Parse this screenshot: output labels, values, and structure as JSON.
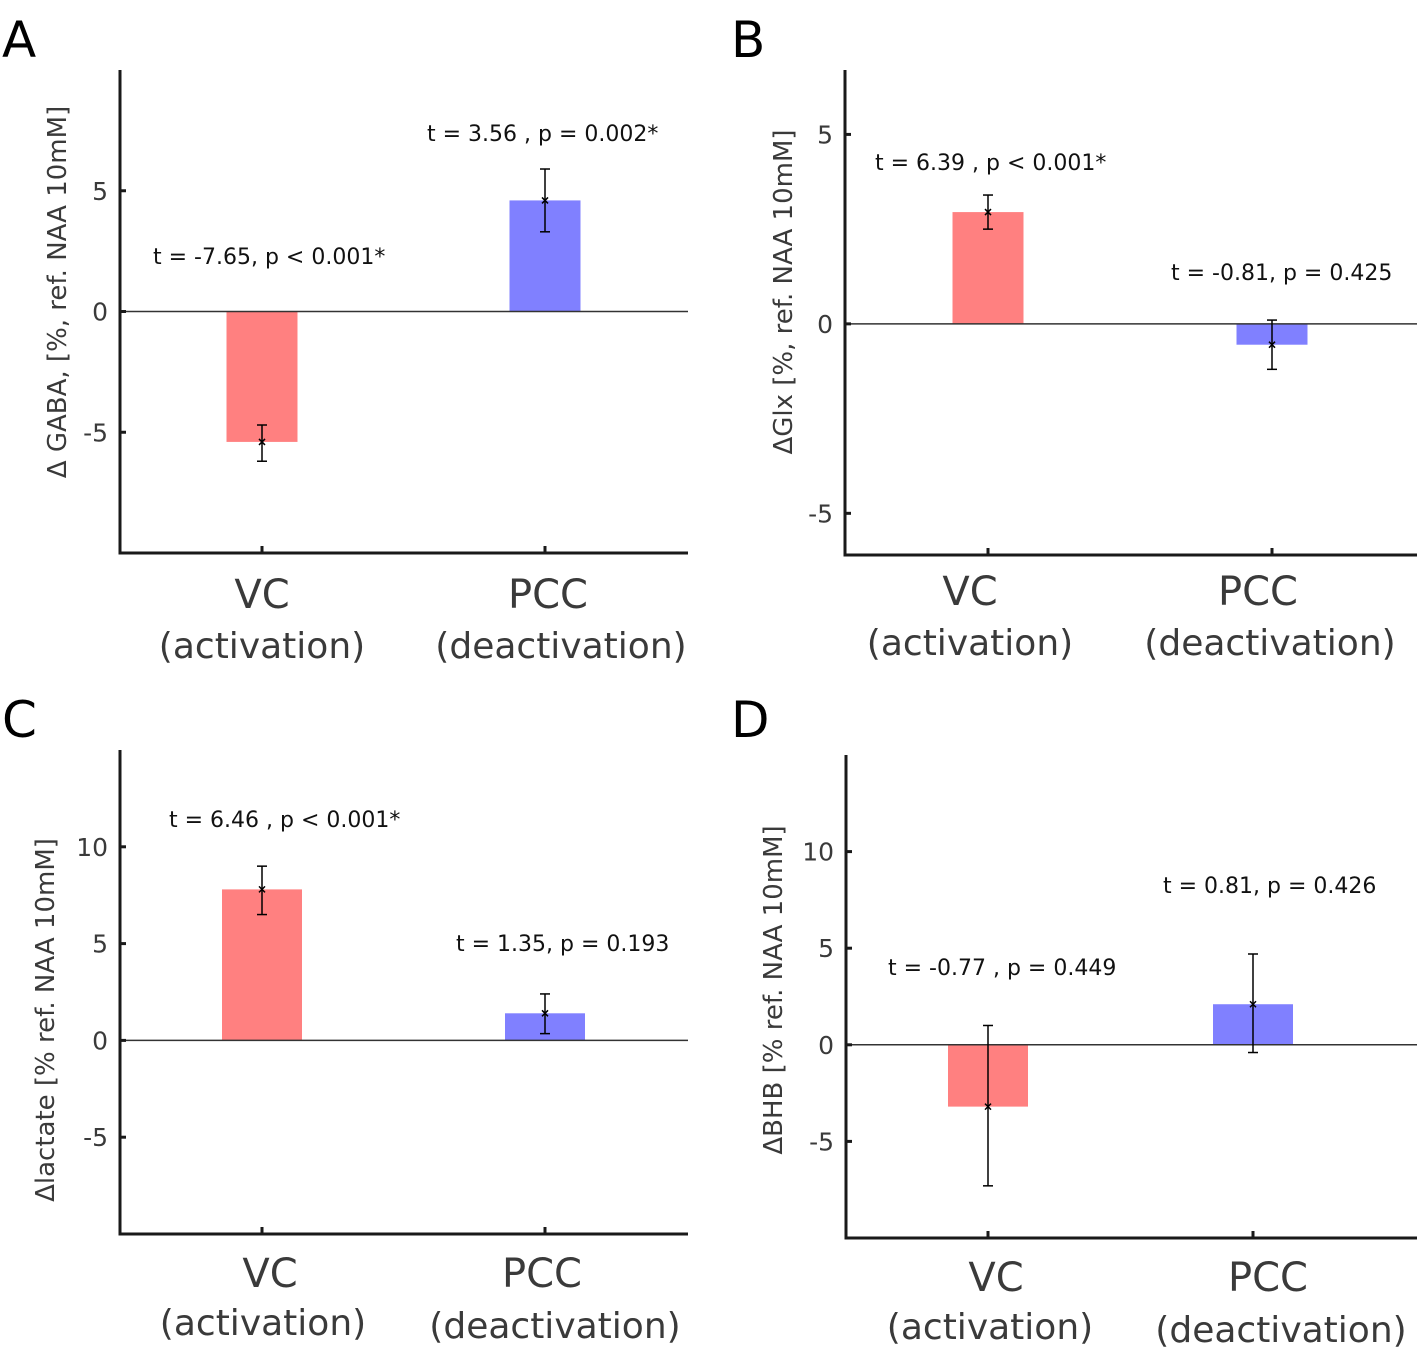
{
  "figure": {
    "colors": {
      "vc_bar": "#ff8080",
      "pcc_bar": "#8080ff",
      "axis": "#1a1a1a",
      "zero_line": "#333333",
      "error_bar": "#000000",
      "text": "#3a3a3a"
    }
  },
  "chart_data": [
    {
      "panel": "A",
      "type": "bar",
      "title": "",
      "xlabel": "",
      "ylabel": "Δ GABA, [%, ref. NAA 10mM]",
      "categories": [
        "VC",
        "PCC"
      ],
      "category_sublabels": [
        "(activation)",
        "(deactivation)"
      ],
      "values": [
        -5.4,
        4.6
      ],
      "error_low": [
        -6.2,
        3.3
      ],
      "error_high": [
        -4.7,
        5.9
      ],
      "yticks": [
        -5,
        0,
        5
      ],
      "ytick_labels": [
        "-5",
        "0",
        "5"
      ],
      "ylim": [
        -10,
        10
      ],
      "annotations": [
        "t = -7.65, p < 0.001*",
        "t = 3.56 , p = 0.002*"
      ],
      "grid": false,
      "legend": "none"
    },
    {
      "panel": "B",
      "type": "bar",
      "title": "",
      "xlabel": "",
      "ylabel": "ΔGlx [%, ref. NAA 10mM]",
      "categories": [
        "VC",
        "PCC"
      ],
      "category_sublabels": [
        "(activation)",
        "(deactivation)"
      ],
      "values": [
        2.95,
        -0.55
      ],
      "error_low": [
        2.5,
        -1.2
      ],
      "error_high": [
        3.4,
        0.1
      ],
      "yticks": [
        -5,
        0,
        5
      ],
      "ytick_labels": [
        "-5",
        "0",
        "5"
      ],
      "ylim": [
        -6.1,
        6.7
      ],
      "annotations": [
        "t = 6.39 , p < 0.001*",
        "t = -0.81, p = 0.425"
      ],
      "grid": false,
      "legend": "none"
    },
    {
      "panel": "C",
      "type": "bar",
      "title": "",
      "xlabel": "",
      "ylabel": "Δlactate [% ref. NAA 10mM]",
      "categories": [
        "VC",
        "PCC"
      ],
      "category_sublabels": [
        "(activation)",
        "(deactivation)"
      ],
      "values": [
        7.8,
        1.4
      ],
      "error_low": [
        6.5,
        0.35
      ],
      "error_high": [
        9.0,
        2.4
      ],
      "yticks": [
        -5,
        0,
        5,
        10
      ],
      "ytick_labels": [
        "-5",
        "0",
        "5",
        "10"
      ],
      "ylim": [
        -10,
        15
      ],
      "annotations": [
        "t = 6.46 , p < 0.001*",
        "t = 1.35, p = 0.193"
      ],
      "grid": false,
      "legend": "none"
    },
    {
      "panel": "D",
      "type": "bar",
      "title": "",
      "xlabel": "",
      "ylabel": "ΔBHB [% ref. NAA 10mM]",
      "categories": [
        "VC",
        "PCC"
      ],
      "category_sublabels": [
        "(activation)",
        "(deactivation)"
      ],
      "values": [
        -3.2,
        2.1
      ],
      "error_low": [
        -7.3,
        -0.4
      ],
      "error_high": [
        1.0,
        4.7
      ],
      "yticks": [
        -5,
        0,
        5,
        10
      ],
      "ytick_labels": [
        "-5",
        "0",
        "5",
        "10"
      ],
      "ylim": [
        -10,
        15
      ],
      "annotations": [
        "t = -0.77 , p = 0.449",
        "t = 0.81, p = 0.426"
      ],
      "grid": false,
      "legend": "none"
    }
  ]
}
